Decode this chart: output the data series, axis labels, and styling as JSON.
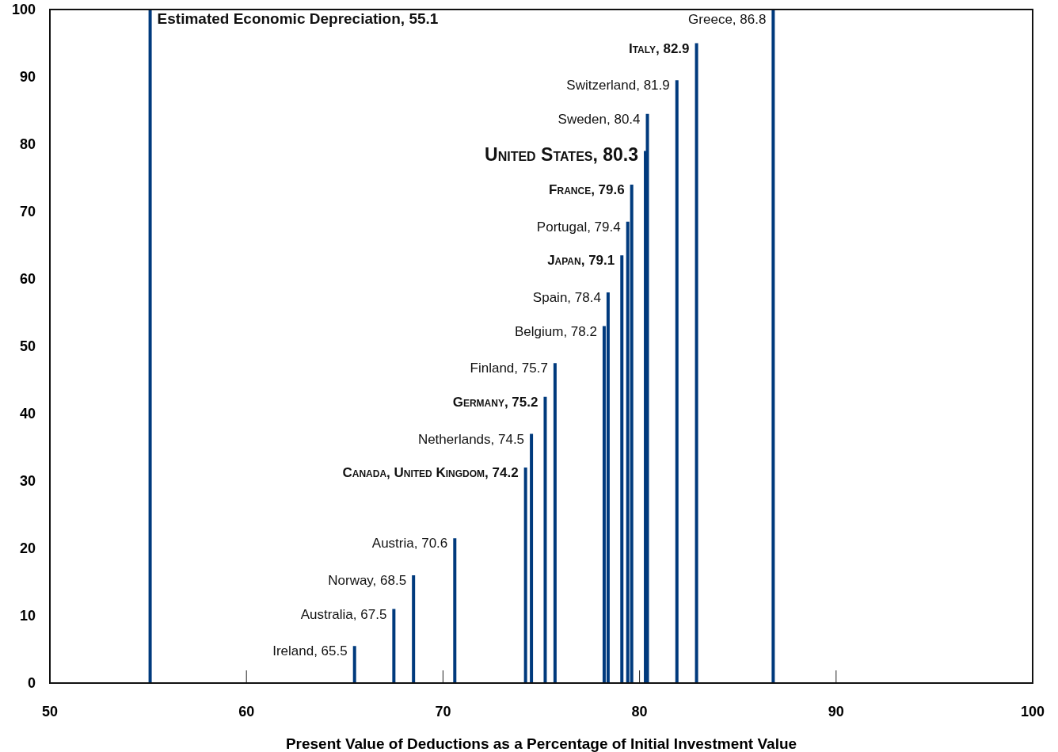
{
  "chart_data": {
    "type": "bar",
    "xlabel": "Present Value of Deductions as a Percentage of Initial Investment Value",
    "xlim": [
      50,
      100
    ],
    "xticks": [
      50,
      60,
      70,
      80,
      90,
      100
    ],
    "ylim": [
      0,
      100
    ],
    "yticks": [
      0,
      10,
      20,
      30,
      40,
      50,
      60,
      70,
      80,
      90,
      100
    ],
    "series": [
      {
        "color": "#003a7d",
        "x": [
          55.1,
          65.5,
          67.5,
          68.5,
          70.6,
          74.2,
          74.5,
          75.2,
          75.7,
          78.2,
          78.4,
          79.1,
          79.4,
          79.6,
          80.3,
          80.4,
          81.9,
          82.9,
          86.8
        ],
        "values": [
          100,
          5.5,
          11,
          16,
          21.5,
          32,
          37,
          42.5,
          47.5,
          53,
          58,
          63.5,
          68.5,
          74,
          79,
          84.5,
          89.5,
          95,
          100
        ]
      }
    ],
    "annotations": [
      {
        "text": "Estimated Economic Depreciation, 55.1",
        "x": 55.1,
        "y": 100
      },
      {
        "text": "Ireland, 65.5",
        "x": 65.5,
        "y": 5.5
      },
      {
        "text": "Australia, 67.5",
        "x": 67.5,
        "y": 11
      },
      {
        "text": "Norway, 68.5",
        "x": 68.5,
        "y": 16
      },
      {
        "text": "Austria, 70.6",
        "x": 70.6,
        "y": 21.5
      },
      {
        "text": "Canada, United Kingdom, 74.2",
        "x": 74.2,
        "y": 32
      },
      {
        "text": "Netherlands, 74.5",
        "x": 74.5,
        "y": 37
      },
      {
        "text": "Germany, 75.2",
        "x": 75.2,
        "y": 42.5
      },
      {
        "text": "Finland, 75.7",
        "x": 75.7,
        "y": 47.5
      },
      {
        "text": "Belgium, 78.2",
        "x": 78.2,
        "y": 53
      },
      {
        "text": "Spain, 78.4",
        "x": 78.4,
        "y": 58
      },
      {
        "text": "Japan, 79.1",
        "x": 79.1,
        "y": 63.5
      },
      {
        "text": "Portugal, 79.4",
        "x": 79.4,
        "y": 68.5
      },
      {
        "text": "France, 79.6",
        "x": 79.6,
        "y": 74
      },
      {
        "text": "United States, 80.3",
        "x": 80.3,
        "y": 79
      },
      {
        "text": "Sweden, 80.4",
        "x": 80.4,
        "y": 84.5
      },
      {
        "text": "Switzerland, 81.9",
        "x": 81.9,
        "y": 89.5
      },
      {
        "text": "Italy, 82.9",
        "x": 82.9,
        "y": 95
      },
      {
        "text": "Greece, 86.8",
        "x": 86.8,
        "y": 100
      }
    ]
  }
}
